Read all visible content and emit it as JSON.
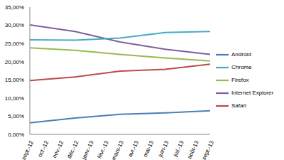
{
  "chart_data": {
    "type": "line",
    "categories": [
      "sept.-12",
      "oct.-12",
      "nov.-12",
      "déc.-12",
      "janv.-13",
      "févr.-13",
      "mars-13",
      "avr.-13",
      "mai-13",
      "juin-13",
      "juil.-13",
      "août-13",
      "sept.-13"
    ],
    "series": [
      {
        "name": "Android",
        "color": "#4a7ebb",
        "values": [
          3.2,
          null,
          null,
          4.5,
          null,
          null,
          5.5,
          null,
          null,
          5.9,
          null,
          null,
          6.5
        ]
      },
      {
        "name": "Safari",
        "color": "#be4b48",
        "values": [
          14.8,
          null,
          null,
          15.8,
          null,
          null,
          17.4,
          null,
          null,
          17.9,
          null,
          null,
          19.3
        ]
      },
      {
        "name": "Firefox",
        "color": "#98b954",
        "values": [
          23.8,
          null,
          null,
          23.1,
          null,
          null,
          22.0,
          null,
          null,
          21.0,
          null,
          null,
          20.2
        ]
      },
      {
        "name": "Internet Explorer",
        "color": "#7d60a0",
        "values": [
          30.1,
          null,
          null,
          28.3,
          null,
          null,
          25.4,
          null,
          null,
          23.4,
          null,
          null,
          22.0
        ]
      },
      {
        "name": "Chrome",
        "color": "#46aac5",
        "values": [
          26.0,
          null,
          null,
          25.9,
          null,
          null,
          26.5,
          null,
          null,
          28.0,
          null,
          null,
          28.3
        ]
      }
    ],
    "ylim": [
      0,
      35
    ],
    "yticks": [
      {
        "value": 0,
        "label": "0,00%"
      },
      {
        "value": 5,
        "label": "5,00%"
      },
      {
        "value": 10,
        "label": "10,00%"
      },
      {
        "value": 15,
        "label": "15,00%"
      },
      {
        "value": 20,
        "label": "20,00%"
      },
      {
        "value": 25,
        "label": "25,00%"
      },
      {
        "value": 30,
        "label": "30,00%"
      },
      {
        "value": 35,
        "label": "35,00%"
      }
    ],
    "grid": false,
    "legend": "right"
  }
}
